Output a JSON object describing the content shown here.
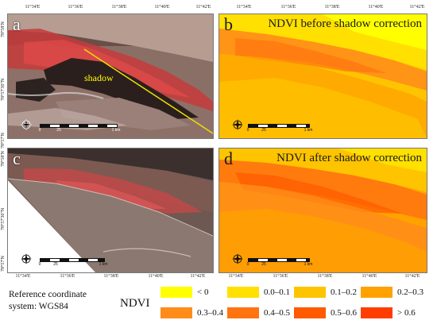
{
  "panels": {
    "a": {
      "letter": "a",
      "shadow_label": "shadow"
    },
    "b": {
      "letter": "b",
      "title": "NDVI before shadow correction"
    },
    "c": {
      "letter": "c"
    },
    "d": {
      "letter": "d",
      "title": "NDVI after shadow correction"
    }
  },
  "graticule": {
    "top_a": [
      "11°34'E",
      "11°36'E",
      "11°38'E",
      "11°40'E",
      "11°42'E"
    ],
    "top_b": [
      "11°34'E",
      "11°36'E",
      "11°38'E",
      "11°40'E",
      "11°42'E"
    ],
    "bottom_c": [
      "11°34'E",
      "11°36'E",
      "11°38'E",
      "11°40'E",
      "11°42'E"
    ],
    "bottom_d": [
      "11°34'E",
      "11°36'E",
      "11°38'E",
      "11°40'E",
      "11°42'E"
    ],
    "left_top": [
      "78°58'N",
      "78°57'30\"N",
      "78°57'N"
    ],
    "left_bottom": [
      "78°58'N",
      "78°57'30\"N",
      "78°57'N"
    ]
  },
  "scale_bar": {
    "ticks": [
      "0",
      "25",
      "0",
      "1 km"
    ]
  },
  "north_arrow": {
    "n": "N",
    "s": "S",
    "e": "E",
    "w": "W"
  },
  "reference": {
    "line1": "Reference coordinate",
    "line2": "system: WGS84"
  },
  "legend": {
    "title": "NDVI",
    "items": [
      {
        "label": "< 0",
        "color": "#ffff00"
      },
      {
        "label": "0.0–0.1",
        "color": "#ffe000"
      },
      {
        "label": "0.1–0.2",
        "color": "#ffc400"
      },
      {
        "label": "0.2–0.3",
        "color": "#ffa200"
      },
      {
        "label": "0.3–0.4",
        "color": "#ff8c1a"
      },
      {
        "label": "0.4–0.5",
        "color": "#ff7410"
      },
      {
        "label": "0.5–0.6",
        "color": "#ff5a00"
      },
      {
        "label": "> 0.6",
        "color": "#ff3d00"
      }
    ]
  }
}
